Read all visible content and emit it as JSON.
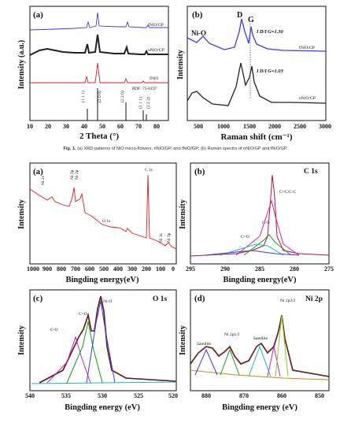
{
  "figure1": {
    "caption_label": "Fig. 1.",
    "caption_text": "(a) XRD patterns of NiO micro-flowers, nNiO/GP, and fNiO/GP; (b) Raman spectra of nNiO/GP and fNiO/GP.",
    "panel_a": {
      "tag": "(a)",
      "ylabel": "Intensity (a.u.)",
      "xlabel": "2 Theta (°)",
      "xticks": [
        "10",
        "20",
        "30",
        "40",
        "50",
        "60",
        "70",
        "80"
      ],
      "curves": [
        "fNiO/GP",
        "nNiO/GP",
        "fNiO"
      ],
      "pdf_label": "PDF: 75-0197",
      "hkl": [
        "(1 1 1)",
        "(2 0 0)",
        "(2 2 0)",
        "(3 1 1)",
        "(2 2 2)"
      ],
      "colors": {
        "fNiO/GP": "#3a3af0",
        "nNiO/GP": "#111111",
        "fNiO": "#e21b1b"
      }
    },
    "panel_b": {
      "tag": "(b)",
      "ylabel": "Intensity",
      "xlabel": "Raman shift (cm⁻¹)",
      "xticks": [
        "500",
        "1000",
        "1500",
        "2000",
        "2500",
        "3000"
      ],
      "peak_d": "D",
      "peak_g": "G",
      "nio_label": "Ni-O",
      "ratio_top": "I D/I G=1.30",
      "ratio_bottom": "I D/I G=1.03",
      "curves": [
        "fNiO/GP",
        "nNiO/GP"
      ]
    }
  },
  "figure2": {
    "panel_a": {
      "tag": "(a)",
      "ylabel": "Intensity",
      "xlabel": "Bingding energy(eV)",
      "xticks": [
        "1000",
        "900",
        "800",
        "700",
        "600",
        "500",
        "400",
        "300",
        "200",
        "100",
        "0"
      ],
      "peaks": [
        "Ni 2s",
        "Ni 2p",
        "Ni 2p",
        "O 1s",
        "C 1s",
        "Ni 3s",
        "Ni 3p"
      ]
    },
    "panel_b": {
      "tag": "(b)",
      "title": "C 1s",
      "ylabel": "Intensity",
      "xlabel": "Bingding energy(eV)",
      "xticks": [
        "295",
        "290",
        "285",
        "280",
        "275"
      ],
      "peaks": [
        "C=C/C-C",
        "C-O",
        "C=O"
      ]
    },
    "panel_c": {
      "tag": "(c)",
      "title": "O 1s",
      "ylabel": "Intensity",
      "xlabel": "Bingding energy (eV)",
      "xticks": [
        "540",
        "535",
        "530",
        "525",
        "520"
      ],
      "peaks": [
        "C-O",
        "C=O",
        "Ni-O"
      ]
    },
    "panel_d": {
      "tag": "(d)",
      "title": "Ni 2p",
      "ylabel": "Intensity",
      "xlabel": "Bingding energy (eV)",
      "xticks": [
        "880",
        "870",
        "860",
        "850"
      ],
      "peaks": [
        "Satellite",
        "Ni 2p1/2",
        "Satellite",
        "Ni 2p3/2"
      ]
    }
  }
}
